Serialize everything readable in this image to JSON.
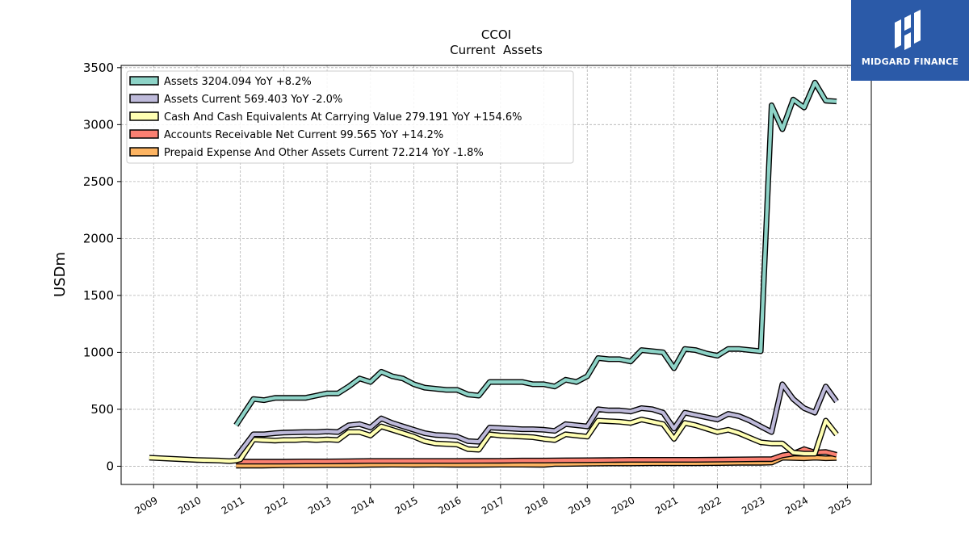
{
  "brand": {
    "name": "MIDGARD FINANCE",
    "accent": "#2b5aa8",
    "icon": "midgard-logo-icon"
  },
  "chart_data": {
    "type": "line",
    "title": "CCOI",
    "subtitle": "Current  Assets",
    "ylabel": "USDm",
    "xlabel": "",
    "xlim": [
      2008.25,
      2025.55
    ],
    "ylim": [
      -160,
      3520
    ],
    "yticks": [
      0,
      500,
      1000,
      1500,
      2000,
      2500,
      3000,
      3500
    ],
    "xticks": [
      2009,
      2010,
      2011,
      2012,
      2013,
      2014,
      2015,
      2016,
      2017,
      2018,
      2019,
      2020,
      2021,
      2022,
      2023,
      2024,
      2025
    ],
    "grid": true,
    "legend_position": "top-left",
    "series": [
      {
        "name": "Assets  3204.094 YoY +8.2%",
        "color": "#8dd3c7",
        "x": [
          2010.9,
          2011.3,
          2011.55,
          2011.8,
          2012.0,
          2012.5,
          2012.75,
          2013.0,
          2013.25,
          2013.5,
          2013.75,
          2014.0,
          2014.25,
          2014.5,
          2014.75,
          2015.0,
          2015.25,
          2015.5,
          2015.75,
          2016.0,
          2016.25,
          2016.5,
          2016.75,
          2017.0,
          2017.25,
          2017.5,
          2017.75,
          2018.0,
          2018.25,
          2018.5,
          2018.75,
          2019.0,
          2019.25,
          2019.5,
          2019.75,
          2020.0,
          2020.25,
          2020.5,
          2020.75,
          2021.0,
          2021.25,
          2021.5,
          2021.75,
          2022.0,
          2022.25,
          2022.5,
          2022.75,
          2023.0,
          2023.25,
          2023.5,
          2023.75,
          2024.0,
          2024.25,
          2024.5,
          2024.75
        ],
        "y": [
          360,
          590,
          580,
          600,
          600,
          600,
          620,
          640,
          640,
          700,
          770,
          740,
          830,
          790,
          770,
          720,
          690,
          680,
          670,
          670,
          630,
          620,
          740,
          740,
          740,
          740,
          720,
          720,
          700,
          760,
          740,
          790,
          950,
          940,
          940,
          920,
          1020,
          1010,
          1000,
          860,
          1030,
          1020,
          990,
          970,
          1030,
          1030,
          1020,
          1010,
          3170,
          2960,
          3220,
          3150,
          3370,
          3210,
          3204
        ]
      },
      {
        "name": "Assets Current  569.403 YoY -2.0%",
        "color": "#bebada",
        "x": [
          2010.9,
          2011.3,
          2011.55,
          2011.8,
          2012.0,
          2012.5,
          2012.75,
          2013.0,
          2013.25,
          2013.5,
          2013.75,
          2014.0,
          2014.25,
          2014.5,
          2014.75,
          2015.0,
          2015.25,
          2015.5,
          2015.75,
          2016.0,
          2016.25,
          2016.5,
          2016.75,
          2017.0,
          2017.25,
          2017.5,
          2017.75,
          2018.0,
          2018.25,
          2018.5,
          2018.75,
          2019.0,
          2019.25,
          2019.5,
          2019.75,
          2020.0,
          2020.25,
          2020.5,
          2020.75,
          2021.0,
          2021.25,
          2021.5,
          2021.75,
          2022.0,
          2022.25,
          2022.5,
          2022.75,
          2023.0,
          2023.25,
          2023.5,
          2023.75,
          2024.0,
          2024.25,
          2024.5,
          2024.75
        ],
        "y": [
          80,
          280,
          280,
          290,
          295,
          300,
          300,
          305,
          300,
          360,
          370,
          340,
          420,
          380,
          350,
          320,
          290,
          275,
          270,
          260,
          220,
          215,
          340,
          335,
          330,
          325,
          325,
          320,
          310,
          370,
          360,
          350,
          500,
          490,
          490,
          480,
          510,
          500,
          470,
          330,
          470,
          450,
          430,
          410,
          460,
          440,
          400,
          350,
          300,
          720,
          590,
          510,
          470,
          700,
          569
        ]
      },
      {
        "name": "Cash And Cash Equivalents At Carrying Value  279.191 YoY +154.6%",
        "color": "#ffffb3",
        "x": [
          2008.9,
          2010.0,
          2010.5,
          2010.75,
          2010.9,
          2011.0,
          2011.3,
          2011.55,
          2011.8,
          2012.0,
          2012.25,
          2012.5,
          2012.75,
          2013.0,
          2013.25,
          2013.5,
          2013.75,
          2014.0,
          2014.25,
          2014.5,
          2014.75,
          2015.0,
          2015.25,
          2015.5,
          2015.75,
          2016.0,
          2016.25,
          2016.5,
          2016.75,
          2017.0,
          2017.25,
          2017.5,
          2017.75,
          2018.0,
          2018.25,
          2018.5,
          2018.75,
          2019.0,
          2019.25,
          2019.5,
          2019.75,
          2020.0,
          2020.25,
          2020.5,
          2020.75,
          2021.0,
          2021.25,
          2021.5,
          2021.75,
          2022.0,
          2022.25,
          2022.5,
          2022.75,
          2023.0,
          2023.25,
          2023.5,
          2023.75,
          2024.0,
          2024.25,
          2024.5,
          2024.75
        ],
        "y": [
          75,
          55,
          50,
          45,
          50,
          60,
          235,
          230,
          225,
          230,
          230,
          235,
          230,
          235,
          230,
          300,
          300,
          270,
          350,
          320,
          290,
          260,
          220,
          200,
          195,
          190,
          150,
          145,
          280,
          270,
          265,
          260,
          255,
          240,
          230,
          280,
          270,
          260,
          400,
          395,
          390,
          380,
          410,
          390,
          370,
          240,
          380,
          360,
          330,
          300,
          320,
          290,
          250,
          210,
          200,
          200,
          120,
          110,
          110,
          400,
          279
        ]
      },
      {
        "name": "Accounts Receivable Net Current  99.565 YoY +14.2%",
        "color": "#fb8072",
        "x": [
          2010.9,
          2011.5,
          2012.0,
          2012.5,
          2013.0,
          2013.5,
          2014.0,
          2014.5,
          2015.0,
          2015.5,
          2016.0,
          2016.5,
          2017.0,
          2017.5,
          2018.0,
          2018.5,
          2019.0,
          2019.5,
          2020.0,
          2020.5,
          2021.0,
          2021.5,
          2022.0,
          2022.5,
          2023.0,
          2023.25,
          2023.5,
          2023.75,
          2024.0,
          2024.25,
          2024.5,
          2024.75
        ],
        "y": [
          40,
          40,
          40,
          42,
          42,
          44,
          46,
          46,
          46,
          46,
          46,
          47,
          48,
          50,
          50,
          52,
          53,
          54,
          56,
          56,
          56,
          56,
          58,
          60,
          62,
          62,
          95,
          110,
          150,
          120,
          125,
          100
        ]
      },
      {
        "name": "Prepaid Expense And Other Assets Current  72.214 YoY -1.8%",
        "color": "#fdb462",
        "x": [
          2010.9,
          2011.5,
          2012.0,
          2012.5,
          2013.0,
          2013.5,
          2014.0,
          2014.5,
          2015.0,
          2015.5,
          2016.0,
          2016.5,
          2017.0,
          2017.5,
          2018.0,
          2018.25,
          2018.5,
          2019.0,
          2019.5,
          2020.0,
          2020.5,
          2021.0,
          2021.5,
          2022.0,
          2022.5,
          2023.0,
          2023.25,
          2023.5,
          2023.75,
          2024.0,
          2024.25,
          2024.5,
          2024.75
        ],
        "y": [
          5,
          5,
          8,
          8,
          10,
          10,
          12,
          14,
          12,
          14,
          12,
          12,
          14,
          14,
          12,
          20,
          20,
          22,
          24,
          24,
          26,
          26,
          26,
          28,
          30,
          30,
          32,
          75,
          72,
          70,
          75,
          70,
          72
        ]
      }
    ]
  }
}
